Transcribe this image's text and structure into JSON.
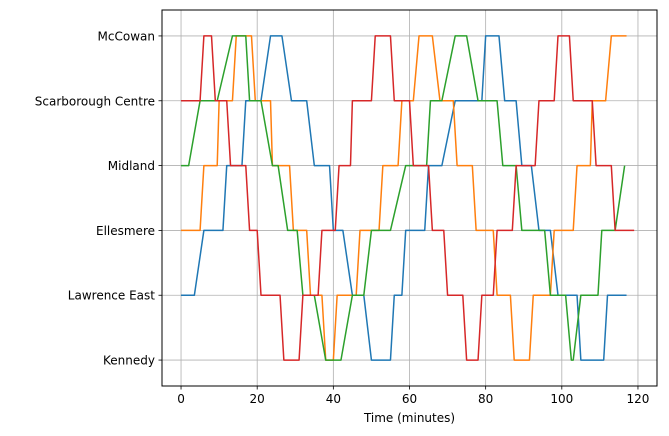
{
  "chart_data": {
    "type": "line",
    "xlabel": "Time (minutes)",
    "ylabel": "",
    "title": "",
    "xlim": [
      -5,
      125
    ],
    "ylim": [
      -0.4,
      5.4
    ],
    "xticks": [
      0,
      20,
      40,
      60,
      80,
      100,
      120
    ],
    "stations": [
      "Kennedy",
      "Lawrence East",
      "Ellesmere",
      "Midland",
      "Scarborough Centre",
      "McCowan"
    ],
    "grid": true,
    "legend": "none",
    "colors": [
      "#1f77b4",
      "#ff7f0e",
      "#2ca02c",
      "#d62728"
    ],
    "series": [
      {
        "x": [
          0,
          3.5,
          6,
          11,
          12,
          16,
          17,
          21,
          23.5,
          26.5,
          29,
          33,
          35,
          39,
          40,
          42.5,
          45,
          48,
          50,
          55,
          56,
          58,
          59,
          64,
          65,
          68.5,
          72,
          79,
          80,
          83.5,
          85,
          88,
          89.5,
          92,
          94,
          97,
          99,
          104,
          105,
          111,
          112,
          117
        ],
        "y": [
          1,
          1,
          2,
          2,
          3,
          3,
          4,
          4,
          5,
          5,
          4,
          4,
          3,
          3,
          2,
          2,
          1,
          1,
          0,
          0,
          1,
          1,
          2,
          2,
          3,
          3,
          4,
          4,
          5,
          5,
          4,
          4,
          3,
          3,
          2,
          2,
          1,
          1,
          0,
          0,
          1,
          1
        ]
      },
      {
        "x": [
          0,
          5,
          6,
          9.5,
          10,
          13.5,
          14.5,
          18.5,
          19.5,
          23.5,
          24,
          28.5,
          29.5,
          33,
          34,
          37,
          38,
          40,
          41,
          46,
          47,
          52,
          53,
          57,
          58,
          61,
          62.5,
          66,
          68,
          71.5,
          72.5,
          76.5,
          77.5,
          82,
          83,
          86.5,
          87.5,
          91.5,
          92.5,
          97,
          98,
          103,
          104,
          107.5,
          108,
          111.5,
          113,
          117
        ],
        "y": [
          2,
          2,
          3,
          3,
          4,
          4,
          5,
          5,
          4,
          4,
          3,
          3,
          2,
          2,
          1,
          1,
          0,
          0,
          1,
          1,
          2,
          2,
          3,
          3,
          4,
          4,
          5,
          5,
          4,
          4,
          3,
          3,
          2,
          2,
          1,
          1,
          0,
          0,
          1,
          1,
          2,
          2,
          3,
          3,
          4,
          4,
          5,
          5
        ]
      },
      {
        "x": [
          0,
          2,
          5,
          9.5,
          13.5,
          17,
          18,
          21,
          24,
          25.5,
          28,
          30.5,
          32,
          35,
          38,
          42,
          45,
          48,
          50,
          55,
          59,
          64.5,
          65.5,
          68.5,
          72,
          75,
          78,
          83,
          84.5,
          88,
          89.5,
          95.5,
          97,
          101,
          102.5,
          103,
          105,
          109.5,
          110.5,
          114,
          116.5
        ],
        "y": [
          3,
          3,
          4,
          4,
          5,
          5,
          4,
          4,
          3,
          3,
          2,
          2,
          1,
          1,
          0,
          0,
          1,
          1,
          2,
          2,
          3,
          3,
          4,
          4,
          5,
          5,
          4,
          4,
          3,
          3,
          2,
          2,
          1,
          1,
          0,
          0,
          1,
          1,
          2,
          2,
          3
        ]
      },
      {
        "x": [
          0,
          5,
          6,
          8,
          9,
          12,
          13,
          17,
          18,
          20,
          21,
          26,
          27,
          31,
          32,
          36,
          37,
          40.5,
          41.5,
          44.5,
          45,
          50,
          51,
          55,
          56,
          60,
          61,
          65,
          66,
          69,
          70,
          74,
          75,
          78,
          79,
          82,
          83,
          87,
          88,
          93,
          94,
          98,
          99,
          102,
          103,
          108,
          109,
          113,
          114,
          119
        ],
        "y": [
          4,
          4,
          5,
          5,
          4,
          4,
          3,
          3,
          2,
          2,
          1,
          1,
          0,
          0,
          1,
          1,
          2,
          2,
          3,
          3,
          4,
          4,
          5,
          5,
          4,
          4,
          3,
          3,
          2,
          2,
          1,
          1,
          0,
          0,
          1,
          1,
          2,
          2,
          3,
          3,
          4,
          4,
          5,
          5,
          4,
          4,
          3,
          3,
          2,
          2
        ]
      }
    ]
  }
}
